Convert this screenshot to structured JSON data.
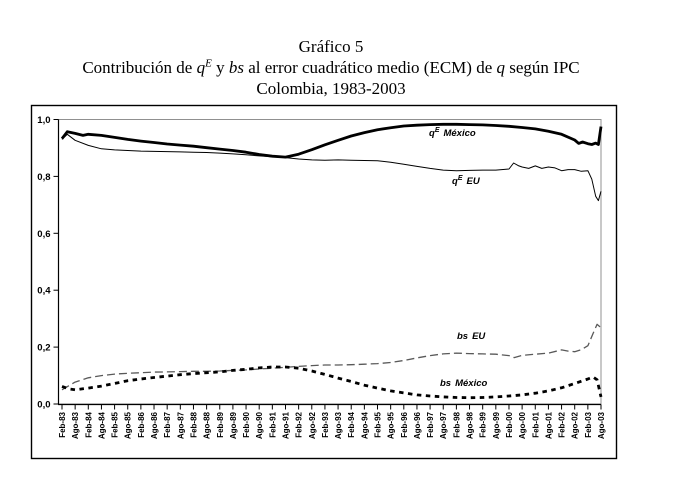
{
  "title": {
    "line1": "Gráfico 5",
    "line2": {
      "t1": "Contribución de ",
      "q1": "q",
      "sup1": "E",
      "t2": " y ",
      "bs": "bs",
      "t3": " al error cuadrático medio (ECM) de ",
      "q2": "q",
      "t4": " según IPC"
    },
    "line3": "Colombia, 1983-2003"
  },
  "chart_data": {
    "type": "line",
    "title": "Gráfico 5",
    "subtitle": "Contribución de qE y bs al error cuadrático medio (ECM) de q según IPC, Colombia, 1983-2003",
    "xlabel": "",
    "ylabel": "",
    "ylim": [
      0,
      1
    ],
    "grid": "off",
    "legend": "inline-labels",
    "x_unit": "semiannual categories, fractional index = intermediate months",
    "categories": [
      "Feb-83",
      "Ago-83",
      "Feb-84",
      "Ago-84",
      "Feb-85",
      "Ago-85",
      "Feb-86",
      "Ago-86",
      "Feb-87",
      "Ago-87",
      "Feb-88",
      "Ago-88",
      "Feb-89",
      "Ago-89",
      "Feb-90",
      "Ago-90",
      "Feb-91",
      "Ago-91",
      "Feb-92",
      "Ago-92",
      "Feb-93",
      "Ago-93",
      "Feb-94",
      "Ago-94",
      "Feb-95",
      "Ago-95",
      "Feb-96",
      "Ago-96",
      "Feb-97",
      "Ago-97",
      "Feb-98",
      "Ago-98",
      "Feb-99",
      "Ago-99",
      "Feb-00",
      "Ago-00",
      "Feb-01",
      "Ago-01",
      "Feb-02",
      "Ago-02",
      "Feb-03",
      "Ago-03"
    ],
    "y_ticks": [
      {
        "label": "0,0",
        "value": 0.0
      },
      {
        "label": "0,2",
        "value": 0.2
      },
      {
        "label": "0,4",
        "value": 0.4
      },
      {
        "label": "0,6",
        "value": 0.6
      },
      {
        "label": "0,8",
        "value": 0.8
      },
      {
        "label": "1,0",
        "value": 1.0
      }
    ],
    "colors": {
      "line_black": "#000000",
      "dashed_gray": "#595959",
      "plot_border_gray": "#909090"
    },
    "series": [
      {
        "name": "qE México",
        "label_parts": {
          "base": "q",
          "sup": "E",
          "rest": "México"
        },
        "style": "thick-solid",
        "color": "#000000",
        "points": [
          [
            0,
            0.933
          ],
          [
            0.4,
            0.957
          ],
          [
            1,
            0.951
          ],
          [
            1.6,
            0.944
          ],
          [
            2,
            0.948
          ],
          [
            3,
            0.944
          ],
          [
            4,
            0.937
          ],
          [
            5,
            0.93
          ],
          [
            6,
            0.924
          ],
          [
            7,
            0.919
          ],
          [
            8,
            0.914
          ],
          [
            9,
            0.91
          ],
          [
            10,
            0.906
          ],
          [
            11,
            0.901
          ],
          [
            12,
            0.896
          ],
          [
            13,
            0.891
          ],
          [
            14,
            0.885
          ],
          [
            15,
            0.877
          ],
          [
            16,
            0.871
          ],
          [
            17,
            0.868
          ],
          [
            18,
            0.878
          ],
          [
            19,
            0.894
          ],
          [
            20,
            0.911
          ],
          [
            21,
            0.927
          ],
          [
            22,
            0.942
          ],
          [
            23,
            0.954
          ],
          [
            24,
            0.964
          ],
          [
            25,
            0.971
          ],
          [
            26,
            0.977
          ],
          [
            27,
            0.98
          ],
          [
            28,
            0.982
          ],
          [
            29,
            0.983
          ],
          [
            30,
            0.983
          ],
          [
            31,
            0.982
          ],
          [
            32,
            0.981
          ],
          [
            33,
            0.979
          ],
          [
            34,
            0.976
          ],
          [
            35,
            0.972
          ],
          [
            36,
            0.967
          ],
          [
            37,
            0.959
          ],
          [
            38,
            0.948
          ],
          [
            39,
            0.928
          ],
          [
            39.3,
            0.916
          ],
          [
            39.6,
            0.921
          ],
          [
            40,
            0.915
          ],
          [
            40.3,
            0.912
          ],
          [
            40.6,
            0.917
          ],
          [
            40.8,
            0.912
          ],
          [
            41,
            0.975
          ]
        ]
      },
      {
        "name": "qE EU",
        "label_parts": {
          "base": "q",
          "sup": "E",
          "rest": "EU"
        },
        "style": "thin-solid",
        "color": "#000000",
        "points": [
          [
            0,
            0.93
          ],
          [
            0.4,
            0.948
          ],
          [
            1,
            0.927
          ],
          [
            2,
            0.909
          ],
          [
            3,
            0.897
          ],
          [
            4,
            0.893
          ],
          [
            5,
            0.891
          ],
          [
            6,
            0.889
          ],
          [
            7,
            0.888
          ],
          [
            8,
            0.887
          ],
          [
            9,
            0.886
          ],
          [
            10,
            0.885
          ],
          [
            11,
            0.884
          ],
          [
            12,
            0.882
          ],
          [
            13,
            0.879
          ],
          [
            14,
            0.876
          ],
          [
            15,
            0.872
          ],
          [
            16,
            0.869
          ],
          [
            17,
            0.866
          ],
          [
            18,
            0.861
          ],
          [
            19,
            0.858
          ],
          [
            20,
            0.857
          ],
          [
            21,
            0.858
          ],
          [
            22,
            0.857
          ],
          [
            23,
            0.856
          ],
          [
            24,
            0.855
          ],
          [
            25,
            0.85
          ],
          [
            26,
            0.843
          ],
          [
            27,
            0.835
          ],
          [
            28,
            0.828
          ],
          [
            29,
            0.822
          ],
          [
            30,
            0.82
          ],
          [
            31,
            0.821
          ],
          [
            32,
            0.822
          ],
          [
            33,
            0.822
          ],
          [
            34,
            0.826
          ],
          [
            34.35,
            0.847
          ],
          [
            34.7,
            0.838
          ],
          [
            35,
            0.833
          ],
          [
            35.5,
            0.828
          ],
          [
            36,
            0.837
          ],
          [
            36.5,
            0.828
          ],
          [
            37,
            0.833
          ],
          [
            37.5,
            0.83
          ],
          [
            38,
            0.82
          ],
          [
            38.5,
            0.824
          ],
          [
            39,
            0.824
          ],
          [
            39.5,
            0.818
          ],
          [
            40,
            0.82
          ],
          [
            40.3,
            0.79
          ],
          [
            40.6,
            0.73
          ],
          [
            40.8,
            0.715
          ],
          [
            41,
            0.748
          ]
        ]
      },
      {
        "name": "bs EU",
        "label_parts": {
          "base": "bs",
          "sup": "",
          "rest": "EU"
        },
        "style": "thin-dashed",
        "color": "#595959",
        "points": [
          [
            0,
            0.05
          ],
          [
            1,
            0.077
          ],
          [
            2,
            0.092
          ],
          [
            3,
            0.1
          ],
          [
            4,
            0.105
          ],
          [
            5,
            0.108
          ],
          [
            6,
            0.11
          ],
          [
            7,
            0.112
          ],
          [
            8,
            0.113
          ],
          [
            9,
            0.114
          ],
          [
            10,
            0.115
          ],
          [
            11,
            0.115
          ],
          [
            12,
            0.116
          ],
          [
            13,
            0.118
          ],
          [
            14,
            0.12
          ],
          [
            15,
            0.123
          ],
          [
            16,
            0.126
          ],
          [
            17,
            0.129
          ],
          [
            18,
            0.132
          ],
          [
            19,
            0.135
          ],
          [
            20,
            0.137
          ],
          [
            21,
            0.137
          ],
          [
            22,
            0.138
          ],
          [
            23,
            0.14
          ],
          [
            24,
            0.142
          ],
          [
            25,
            0.146
          ],
          [
            26,
            0.153
          ],
          [
            27,
            0.162
          ],
          [
            28,
            0.17
          ],
          [
            29,
            0.176
          ],
          [
            30,
            0.179
          ],
          [
            31,
            0.177
          ],
          [
            32,
            0.176
          ],
          [
            33,
            0.175
          ],
          [
            34,
            0.17
          ],
          [
            34.4,
            0.163
          ],
          [
            35,
            0.171
          ],
          [
            36,
            0.175
          ],
          [
            37,
            0.179
          ],
          [
            38,
            0.19
          ],
          [
            38.5,
            0.186
          ],
          [
            39,
            0.184
          ],
          [
            39.5,
            0.191
          ],
          [
            40,
            0.205
          ],
          [
            40.4,
            0.248
          ],
          [
            40.7,
            0.28
          ],
          [
            41,
            0.268
          ]
        ]
      },
      {
        "name": "bs México",
        "label_parts": {
          "base": "bs",
          "sup": "",
          "rest": "México"
        },
        "style": "thick-dashed",
        "color": "#000000",
        "points": [
          [
            0,
            0.062
          ],
          [
            0.5,
            0.053
          ],
          [
            1,
            0.05
          ],
          [
            2,
            0.056
          ],
          [
            3,
            0.063
          ],
          [
            4,
            0.072
          ],
          [
            5,
            0.082
          ],
          [
            6,
            0.088
          ],
          [
            7,
            0.093
          ],
          [
            8,
            0.098
          ],
          [
            9,
            0.103
          ],
          [
            10,
            0.107
          ],
          [
            11,
            0.11
          ],
          [
            12,
            0.113
          ],
          [
            13,
            0.118
          ],
          [
            14,
            0.122
          ],
          [
            15,
            0.127
          ],
          [
            16,
            0.13
          ],
          [
            17,
            0.13
          ],
          [
            18,
            0.126
          ],
          [
            19,
            0.116
          ],
          [
            20,
            0.104
          ],
          [
            21,
            0.091
          ],
          [
            22,
            0.079
          ],
          [
            23,
            0.066
          ],
          [
            24,
            0.056
          ],
          [
            25,
            0.046
          ],
          [
            26,
            0.039
          ],
          [
            27,
            0.032
          ],
          [
            28,
            0.028
          ],
          [
            29,
            0.025
          ],
          [
            30,
            0.023
          ],
          [
            31,
            0.022
          ],
          [
            32,
            0.023
          ],
          [
            33,
            0.025
          ],
          [
            34,
            0.028
          ],
          [
            35,
            0.032
          ],
          [
            36,
            0.038
          ],
          [
            37,
            0.046
          ],
          [
            38,
            0.057
          ],
          [
            39,
            0.072
          ],
          [
            40,
            0.088
          ],
          [
            40.4,
            0.095
          ],
          [
            40.7,
            0.085
          ],
          [
            41,
            0.025
          ]
        ]
      }
    ]
  }
}
